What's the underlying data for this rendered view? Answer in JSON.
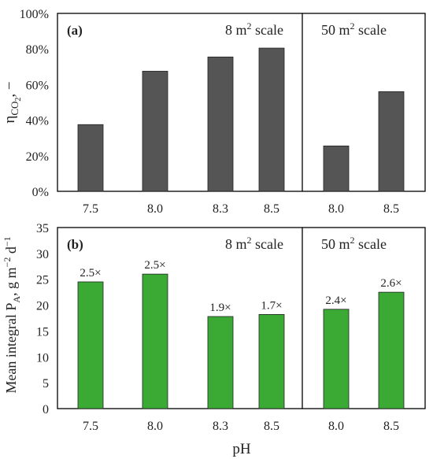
{
  "xlabel": "pH",
  "chart_data": [
    {
      "type": "bar",
      "panel_label": "(a)",
      "ylabel": {
        "main": "η",
        "sub": "CO",
        "subsub": "2",
        "tail": ", −"
      },
      "ylim": [
        0,
        100
      ],
      "y_ticks": [
        "0%",
        "20%",
        "40%",
        "60%",
        "80%",
        "100%"
      ],
      "categories": [
        "7.5",
        "8.0",
        "8.3",
        "8.5",
        "8.0",
        "8.5"
      ],
      "values": [
        37.5,
        67.5,
        75.5,
        80.5,
        25.5,
        56
      ],
      "bar_color": "#555555",
      "groups": [
        {
          "label": "8 m",
          "sup": "2",
          "tail": " scale",
          "count": 4
        },
        {
          "label": "50 m",
          "sup": "2",
          "tail": " scale",
          "count": 2
        }
      ],
      "grid": false
    },
    {
      "type": "bar",
      "panel_label": "(b)",
      "ylabel": {
        "text": "Mean integral P",
        "sub": "A",
        "unit": ", g m",
        "sup1": "−2",
        "unit2": " d",
        "sup2": "−1"
      },
      "ylim": [
        0,
        35
      ],
      "y_ticks": [
        "0",
        "5",
        "10",
        "15",
        "20",
        "25",
        "30",
        "35"
      ],
      "categories": [
        "7.5",
        "8.0",
        "8.3",
        "8.5",
        "8.0",
        "8.5"
      ],
      "values": [
        24.5,
        26,
        17.8,
        18.2,
        19.2,
        22.5
      ],
      "data_labels": [
        "2.5×",
        "2.5×",
        "1.9×",
        "1.7×",
        "2.4×",
        "2.6×"
      ],
      "bar_color": "#3aaa35",
      "groups": [
        {
          "label": "8 m",
          "sup": "2",
          "tail": " scale",
          "count": 4
        },
        {
          "label": "50 m",
          "sup": "2",
          "tail": " scale",
          "count": 2
        }
      ],
      "grid": false
    }
  ]
}
